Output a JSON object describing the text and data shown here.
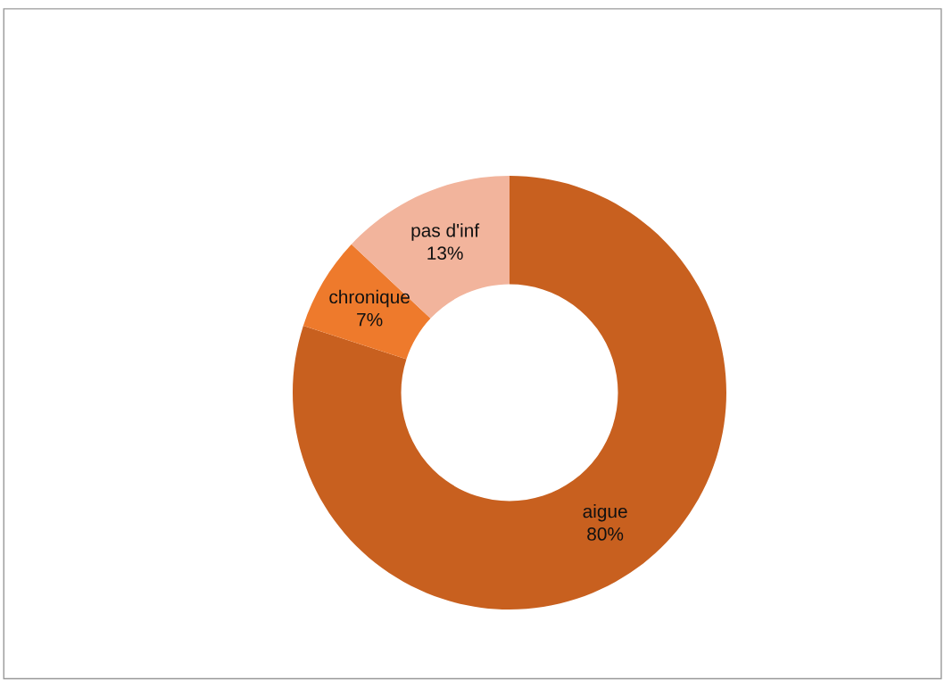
{
  "chart_data": {
    "type": "donut",
    "categories": [
      "aigue",
      "chronique",
      "pas d'inf"
    ],
    "values": [
      80,
      7,
      13
    ],
    "value_labels": [
      "80%",
      "7%",
      "13%"
    ],
    "colors": [
      "#c8601f",
      "#ee7a2c",
      "#f2b49c"
    ],
    "legend": false
  }
}
